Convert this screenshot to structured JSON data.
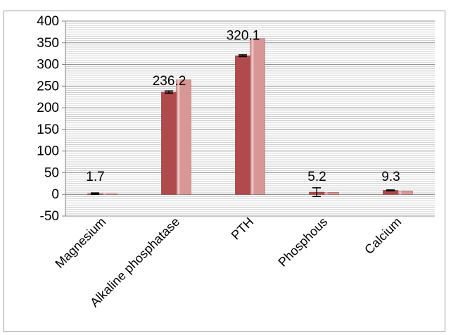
{
  "chart_data": {
    "type": "bar",
    "title": "",
    "xlabel": "",
    "ylabel": "",
    "categories": [
      "Magnesium",
      "Alkaline phosphatase",
      "PTH",
      "Phosphous",
      "Calcium"
    ],
    "series": [
      {
        "values": [
          1.7,
          236.2,
          320.1,
          5.2,
          9.3
        ],
        "error": [
          1.5,
          2.5,
          2,
          10,
          1
        ],
        "color": "#b04a4c"
      },
      {
        "values": [
          2,
          265,
          360,
          5,
          8
        ],
        "color": "#d99697"
      }
    ],
    "data_labels": [
      "1.7",
      "236.2",
      "320.1",
      "5.2",
      "9.3"
    ],
    "ylim": [
      -50,
      400
    ],
    "yticks": [
      400,
      350,
      300,
      250,
      200,
      150,
      100,
      50,
      0,
      -50
    ],
    "grid": true,
    "legend": "none"
  }
}
